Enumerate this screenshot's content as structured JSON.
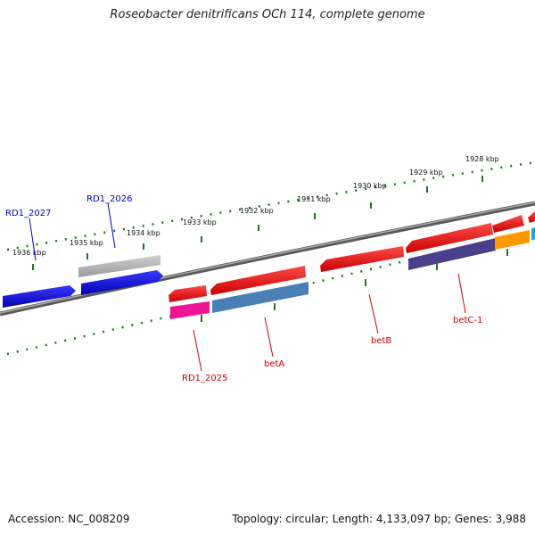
{
  "title": "Roseobacter denitrificans OCh 114, complete genome",
  "footer": {
    "accession": "Accession: NC_008209",
    "summary": "Topology: circular; Length: 4,133,097 bp; Genes: 3,988"
  },
  "scale_ticks": [
    "1936 kbp",
    "1935 kbp",
    "1934 kbp",
    "1933 kbp",
    "1932 kbp",
    "1931 kbp",
    "1930 kbp",
    "1929 kbp",
    "1928 kbp"
  ],
  "gene_labels": {
    "rd1_2027": "RD1_2027",
    "rd1_2026": "RD1_2026",
    "rd1_2025": "RD1_2025",
    "betA": "betA",
    "betB": "betB",
    "betC1": "betC-1"
  },
  "colors": {
    "backbone": "#7a7a7a",
    "tick": "#1a7a1a",
    "forward_label": "#0000cc",
    "reverse_label": "#cc0000",
    "cds_red": "#ee0000",
    "cds_blue": "#0000ee",
    "cds_grey": "#b4b4b4",
    "cds_magenta": "#ee1493",
    "cds_steelblue": "#4a7fb5",
    "cds_purple": "#4a3f8a",
    "cds_orange": "#ff9900",
    "cds_cyan": "#22aacc"
  }
}
